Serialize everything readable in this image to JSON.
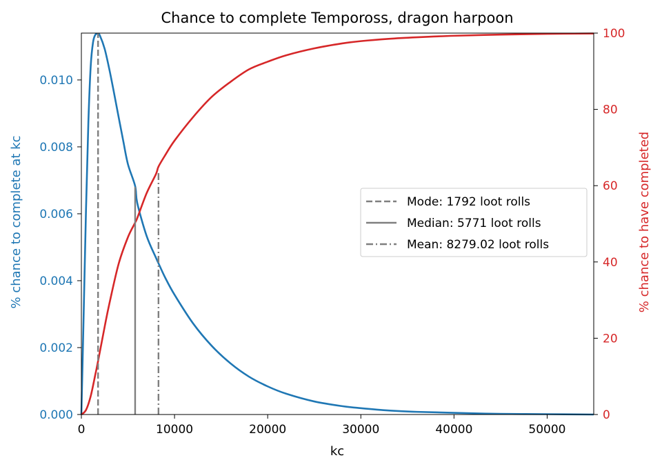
{
  "chart_data": {
    "type": "line",
    "title": "Chance to complete Tempoross, dragon harpoon",
    "xlabel": "kc",
    "ylabel_left": "% chance to complete at kc",
    "ylabel_right": "% chance to have completed",
    "xlim": [
      0,
      55000
    ],
    "ylim_left": [
      0,
      0.0114
    ],
    "ylim_right": [
      0,
      100
    ],
    "x_ticks": [
      "0",
      "10000",
      "20000",
      "30000",
      "40000",
      "50000"
    ],
    "y_left_ticks": [
      "0.000",
      "0.002",
      "0.004",
      "0.006",
      "0.008",
      "0.010"
    ],
    "y_right_ticks": [
      "0",
      "20",
      "40",
      "60",
      "80",
      "100"
    ],
    "grid": false,
    "legend_position": "center-right",
    "series": [
      {
        "axis": "left",
        "color": "#1f77b4",
        "x": [
          0,
          250,
          500,
          750,
          1000,
          1250,
          1500,
          1792,
          2000,
          2500,
          3000,
          3500,
          4000,
          4500,
          5000,
          5771,
          6000,
          7000,
          8000,
          8279,
          9000,
          10000,
          12000,
          14000,
          16000,
          18000,
          20000,
          22000,
          25000,
          28000,
          30000,
          33000,
          36000,
          40000,
          45000,
          50000,
          55000
        ],
        "values": [
          0.0,
          0.00305,
          0.00615,
          0.00872,
          0.0104,
          0.01112,
          0.01135,
          0.01138,
          0.01132,
          0.01093,
          0.01032,
          0.00962,
          0.00889,
          0.00817,
          0.00748,
          0.00683,
          0.00632,
          0.00534,
          0.00469,
          0.00452,
          0.00409,
          0.00358,
          0.00272,
          0.00205,
          0.00153,
          0.00113,
          0.00084,
          0.00062,
          0.00039,
          0.00025,
          0.00019,
          0.00012,
          8e-05,
          5e-05,
          2e-05,
          1e-05,
          0.0
        ]
      },
      {
        "axis": "right",
        "color": "#d62728",
        "x": [
          0,
          500,
          1000,
          1500,
          1792,
          2500,
          3000,
          4000,
          5000,
          5771,
          6000,
          7000,
          8000,
          8279,
          9000,
          10000,
          12000,
          14000,
          16000,
          18000,
          20000,
          22000,
          25000,
          28000,
          30000,
          33000,
          36000,
          40000,
          45000,
          50000,
          55000
        ],
        "values": [
          0,
          1.2,
          4.8,
          10.5,
          14.0,
          23.0,
          29.0,
          39.5,
          46.5,
          50.3,
          51.5,
          58.0,
          63.0,
          65.0,
          68.0,
          71.8,
          78.0,
          83.3,
          87.2,
          90.5,
          92.5,
          94.2,
          96.0,
          97.3,
          97.9,
          98.5,
          98.9,
          99.3,
          99.6,
          99.8,
          99.9
        ]
      }
    ],
    "vlines": [
      {
        "label": "Mode: 1792 loot rolls",
        "x": 1792,
        "y_top": 0.0114,
        "color": "#7f7f7f",
        "style": "dashed"
      },
      {
        "label": "Median: 5771 loot rolls",
        "x": 5771,
        "y_top": 0.0068,
        "color": "#7f7f7f",
        "style": "solid"
      },
      {
        "label": "Mean: 8279.02 loot rolls",
        "x": 8279,
        "y_top": 0.0073,
        "color": "#7f7f7f",
        "style": "dashdot"
      }
    ]
  }
}
